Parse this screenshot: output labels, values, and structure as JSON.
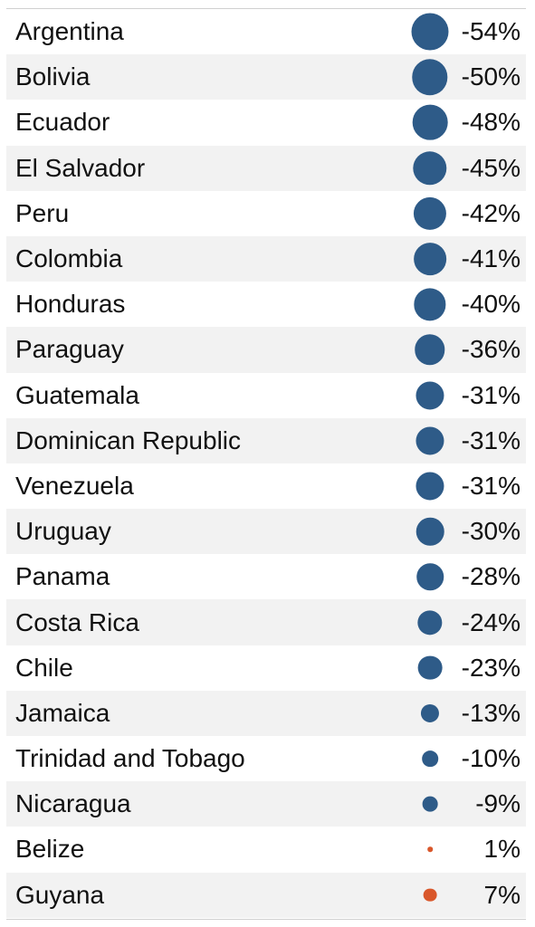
{
  "chart_data": {
    "type": "table",
    "series": [
      {
        "categories": [
          "Argentina",
          "Bolivia",
          "Ecuador",
          "El Salvador",
          "Peru",
          "Colombia",
          "Honduras",
          "Paraguay",
          "Guatemala",
          "Dominican Republic",
          "Venezuela",
          "Uruguay",
          "Panama",
          "Costa Rica",
          "Chile",
          "Jamaica",
          "Trinidad and Tobago",
          "Nicaragua",
          "Belize",
          "Guyana"
        ],
        "values": [
          -54,
          -50,
          -48,
          -45,
          -42,
          -41,
          -40,
          -36,
          -31,
          -31,
          -31,
          -30,
          -28,
          -24,
          -23,
          -13,
          -10,
          -9,
          1,
          7
        ],
        "labels": [
          "-54%",
          "-50%",
          "-48%",
          "-45%",
          "-42%",
          "-41%",
          "-40%",
          "-36%",
          "-31%",
          "-31%",
          "-31%",
          "-30%",
          "-28%",
          "-24%",
          "-23%",
          "-13%",
          "-10%",
          "-9%",
          "1%",
          "7%"
        ]
      }
    ],
    "colors": {
      "negative": "#2e5b88",
      "positive": "#d9572b"
    }
  }
}
